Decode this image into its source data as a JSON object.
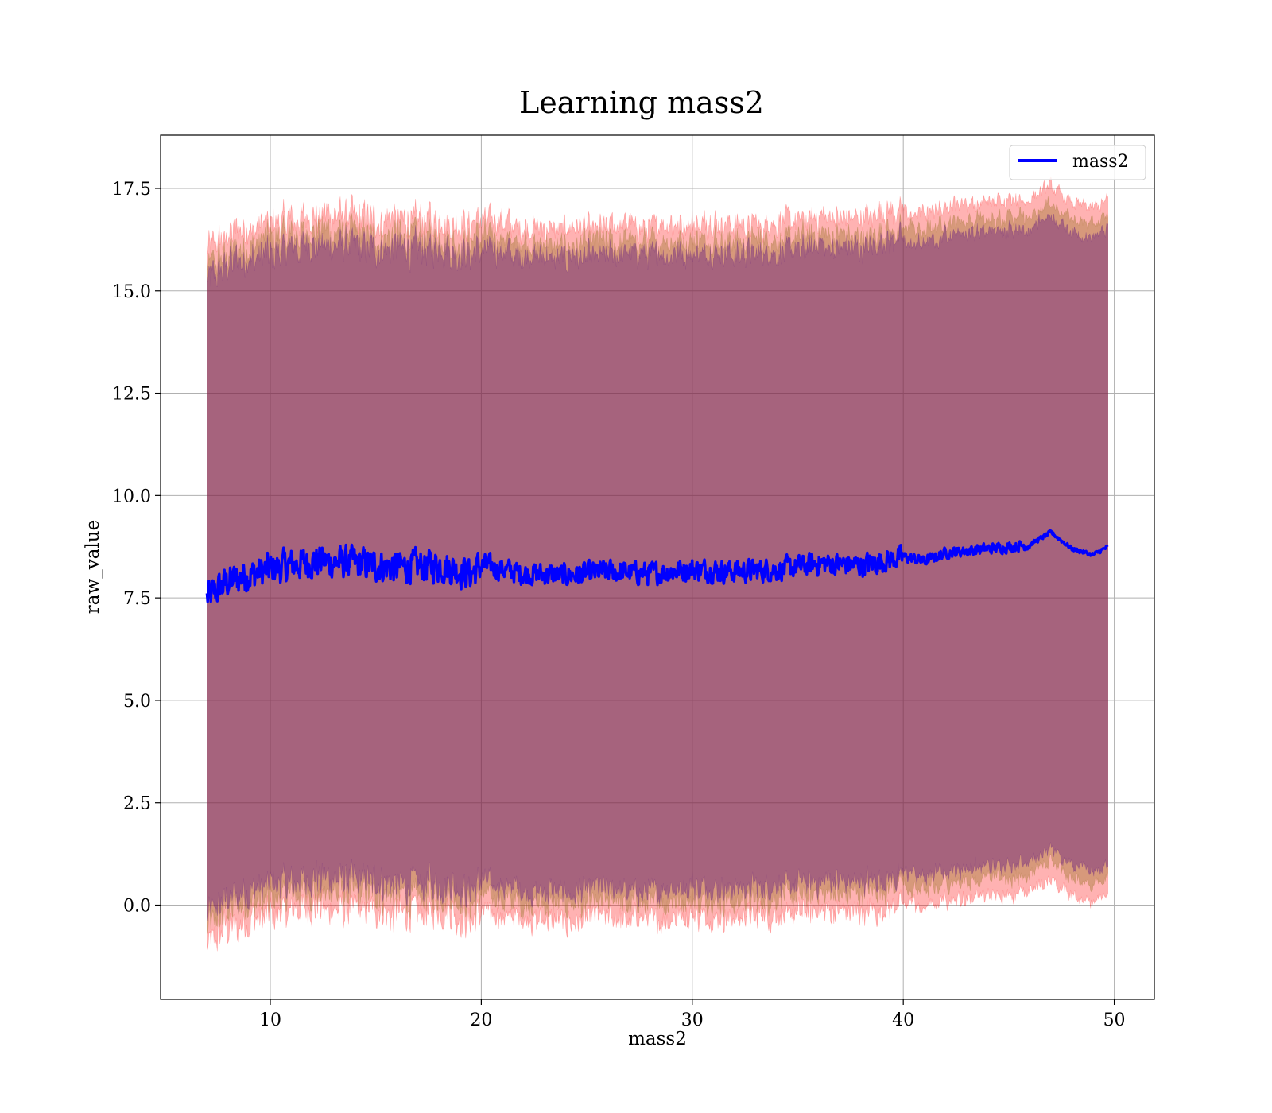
{
  "chart_data": {
    "type": "line",
    "title": "Learning mass2",
    "xlabel": "mass2",
    "ylabel": "raw_value",
    "xlim": [
      4.8,
      51.9
    ],
    "ylim": [
      -2.3,
      18.8
    ],
    "xticks": [
      10,
      20,
      30,
      40,
      50
    ],
    "xtick_labels": [
      "10",
      "20",
      "30",
      "40",
      "50"
    ],
    "yticks": [
      0.0,
      2.5,
      5.0,
      7.5,
      10.0,
      12.5,
      15.0,
      17.5
    ],
    "ytick_labels": [
      "0.0",
      "2.5",
      "5.0",
      "7.5",
      "10.0",
      "12.5",
      "15.0",
      "17.5"
    ],
    "grid": true,
    "legend": {
      "placement": "top-right",
      "entries": [
        "mass2"
      ]
    },
    "series": [
      {
        "name": "mass2",
        "color": "#0000ff",
        "x": [
          7.0,
          8.0,
          10.0,
          12.0,
          14.0,
          16.0,
          18.0,
          19.5,
          20.0,
          22.0,
          24.0,
          26.0,
          28.0,
          30.0,
          32.0,
          34.0,
          35.0,
          36.0,
          38.0,
          40.0,
          41.0,
          42.0,
          44.0,
          46.0,
          47.0,
          48.0,
          49.0,
          49.7
        ],
        "mean": [
          7.5,
          7.9,
          8.2,
          8.4,
          8.35,
          8.25,
          8.3,
          8.1,
          8.3,
          8.1,
          8.05,
          8.15,
          8.1,
          8.2,
          8.15,
          8.2,
          8.25,
          8.35,
          8.3,
          8.5,
          8.4,
          8.6,
          8.7,
          8.8,
          9.1,
          8.7,
          8.55,
          8.75
        ]
      }
    ],
    "bands": [
      {
        "color": "#ff0000",
        "alpha": 0.3,
        "upper_offset": 8.45,
        "lower_offset": -8.45
      },
      {
        "color": "#8b6914",
        "alpha": 0.35,
        "upper_offset": 8.05,
        "lower_offset": -8.05
      },
      {
        "color": "#4b0082",
        "alpha": 0.35,
        "upper_offset": 7.75,
        "lower_offset": -7.75
      }
    ]
  }
}
